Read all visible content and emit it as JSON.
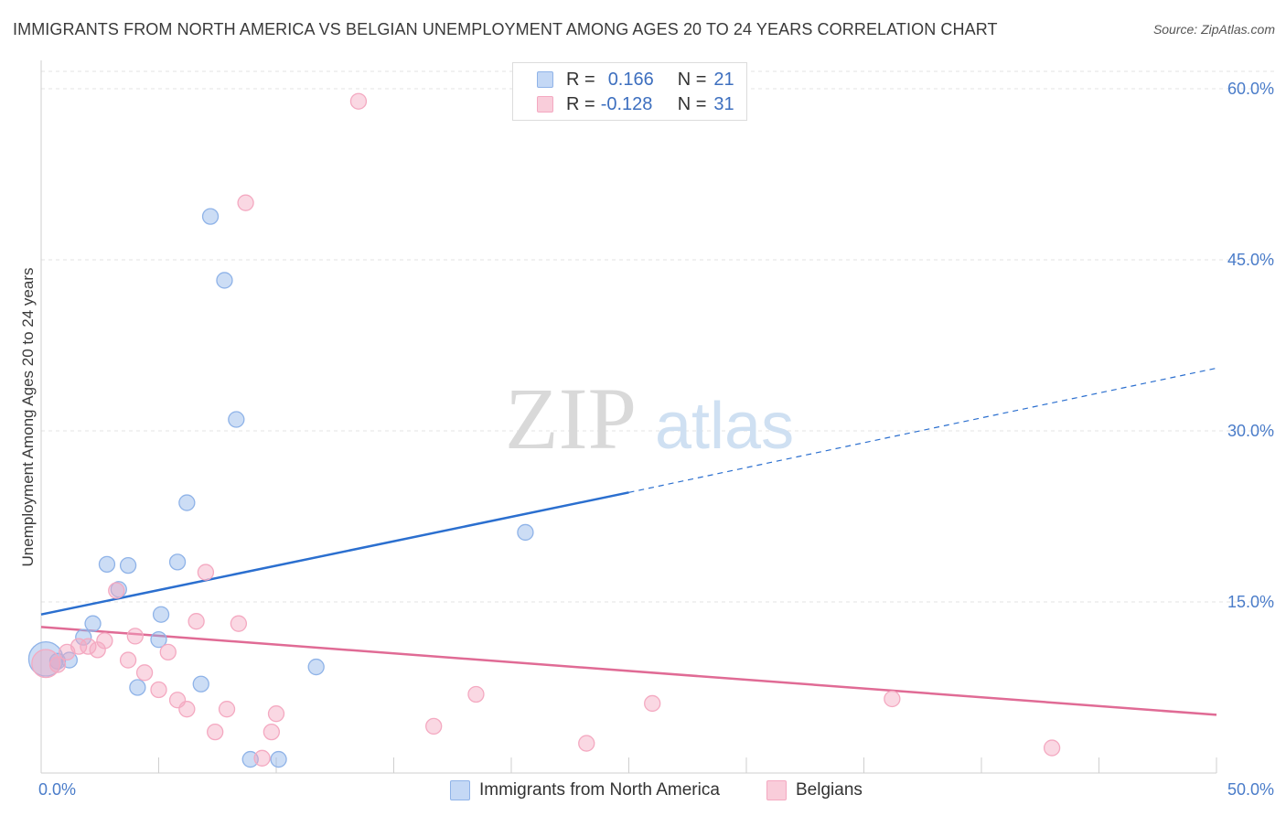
{
  "header": {
    "title": "IMMIGRANTS FROM NORTH AMERICA VS BELGIAN UNEMPLOYMENT AMONG AGES 20 TO 24 YEARS CORRELATION CHART",
    "source": "Source: ZipAtlas.com"
  },
  "watermark": {
    "zip": "ZIP",
    "atlas": "atlas"
  },
  "legend": {
    "rows": [
      {
        "r_label": "R =",
        "r_value": "0.166",
        "n_label": "N =",
        "n_value": "21"
      },
      {
        "r_label": "R =",
        "r_value": "-0.128",
        "n_label": "N =",
        "n_value": "31"
      }
    ]
  },
  "chart_data": {
    "type": "scatter",
    "title": "IMMIGRANTS FROM NORTH AMERICA VS BELGIAN UNEMPLOYMENT AMONG AGES 20 TO 24 YEARS CORRELATION CHART",
    "xlabel": "",
    "ylabel": "Unemployment Among Ages 20 to 24 years",
    "xlim": [
      0,
      50
    ],
    "ylim": [
      0,
      60
    ],
    "x_tick_labels": [
      "0.0%",
      "50.0%"
    ],
    "y_ticks": [
      15,
      30,
      45,
      60
    ],
    "y_tick_labels": [
      "15.0%",
      "30.0%",
      "45.0%",
      "60.0%"
    ],
    "grid": true,
    "legend_position": "top-center",
    "series": [
      {
        "name": "Immigrants from North America",
        "color": "#8fb3e8",
        "line_color": "#2b6fcf",
        "trend": {
          "start": [
            0,
            13.9
          ],
          "end_solid": [
            25,
            24.6
          ],
          "end_dashed": [
            50,
            35.5
          ]
        },
        "points": [
          [
            0.2,
            10.0,
            2.2
          ],
          [
            0.7,
            9.8,
            1
          ],
          [
            1.2,
            9.9,
            1
          ],
          [
            1.8,
            11.9,
            1
          ],
          [
            2.2,
            13.1,
            1
          ],
          [
            2.8,
            18.3,
            1
          ],
          [
            3.3,
            16.1,
            1
          ],
          [
            3.7,
            18.2,
            1
          ],
          [
            4.1,
            7.5,
            1
          ],
          [
            5.0,
            11.7,
            1
          ],
          [
            5.1,
            13.9,
            1
          ],
          [
            5.8,
            18.5,
            1
          ],
          [
            6.2,
            23.7,
            1
          ],
          [
            6.8,
            7.8,
            1
          ],
          [
            7.2,
            48.8,
            1
          ],
          [
            7.8,
            43.2,
            1
          ],
          [
            8.3,
            31.0,
            1
          ],
          [
            8.9,
            1.2,
            1
          ],
          [
            10.1,
            1.2,
            1
          ],
          [
            11.7,
            9.3,
            1
          ],
          [
            20.6,
            21.1,
            1
          ]
        ]
      },
      {
        "name": "Belgians",
        "color": "#f4a9c1",
        "line_color": "#e06b95",
        "trend": {
          "start": [
            0,
            12.8
          ],
          "end": [
            50,
            5.1
          ]
        },
        "points": [
          [
            0.2,
            9.6,
            1.8
          ],
          [
            0.7,
            9.5,
            1
          ],
          [
            1.1,
            10.6,
            1
          ],
          [
            1.6,
            11.1,
            1
          ],
          [
            2.0,
            11.1,
            1
          ],
          [
            2.4,
            10.8,
            1
          ],
          [
            2.7,
            11.6,
            1
          ],
          [
            3.2,
            16.0,
            1
          ],
          [
            3.7,
            9.9,
            1
          ],
          [
            4.0,
            12.0,
            1
          ],
          [
            4.4,
            8.8,
            1
          ],
          [
            5.0,
            7.3,
            1
          ],
          [
            5.4,
            10.6,
            1
          ],
          [
            5.8,
            6.4,
            1
          ],
          [
            6.2,
            5.6,
            1
          ],
          [
            6.6,
            13.3,
            1
          ],
          [
            7.0,
            17.6,
            1
          ],
          [
            7.4,
            3.6,
            1
          ],
          [
            7.9,
            5.6,
            1
          ],
          [
            8.4,
            13.1,
            1
          ],
          [
            8.7,
            50.0,
            1
          ],
          [
            9.4,
            1.3,
            1
          ],
          [
            9.8,
            3.6,
            1
          ],
          [
            10.0,
            5.2,
            1
          ],
          [
            13.5,
            58.9,
            1
          ],
          [
            16.7,
            4.1,
            1
          ],
          [
            18.5,
            6.9,
            1
          ],
          [
            23.2,
            2.6,
            1
          ],
          [
            26.0,
            6.1,
            1
          ],
          [
            36.2,
            6.5,
            1
          ],
          [
            43.0,
            2.2,
            1
          ]
        ]
      }
    ]
  }
}
